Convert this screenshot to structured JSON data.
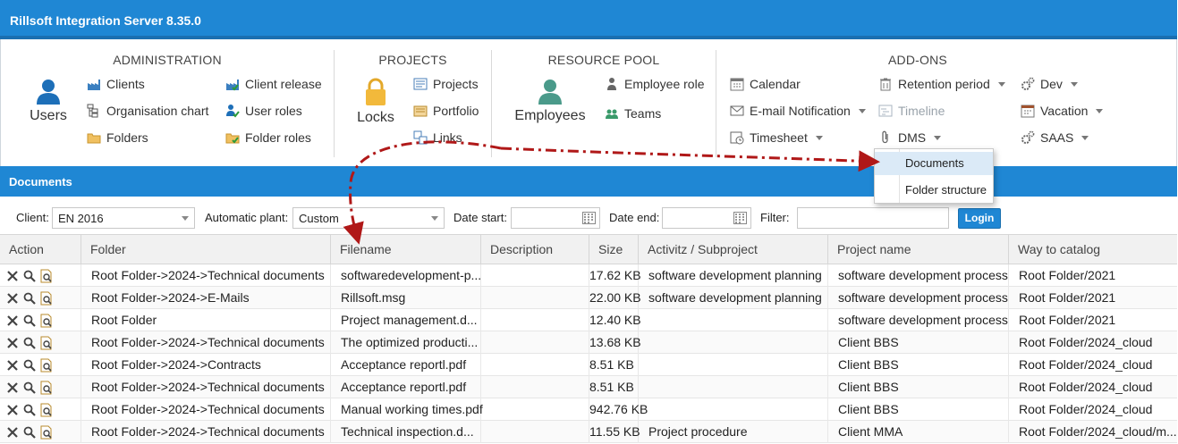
{
  "app": {
    "title": "Rillsoft Integration Server 8.35.0"
  },
  "ribbon": {
    "administration": {
      "title": "ADMINISTRATION",
      "big": "Users",
      "items": [
        "Clients",
        "Organisation chart",
        "Folders",
        "Client release",
        "User roles",
        "Folder roles"
      ]
    },
    "projects": {
      "title": "PROJECTS",
      "big": "Locks",
      "items": [
        "Projects",
        "Portfolio",
        "Links"
      ]
    },
    "resource_pool": {
      "title": "RESOURCE POOL",
      "big": "Employees",
      "items": [
        "Employee role",
        "Teams"
      ]
    },
    "addons": {
      "title": "ADD-ONS",
      "items": [
        "Calendar",
        "E-mail Notification",
        "Timesheet",
        "Retention period",
        "Timeline",
        "DMS",
        "Dev",
        "Vacation",
        "SAAS"
      ]
    }
  },
  "documents": {
    "title": "Documents"
  },
  "filters": {
    "client_label": "Client:",
    "client_value": "EN 2016",
    "plant_label": "Automatic plant:",
    "plant_value": "Custom",
    "date_start_label": "Date start:",
    "date_end_label": "Date end:",
    "filter_label": "Filter:",
    "login_label": "Login"
  },
  "table": {
    "headers": [
      "Action",
      "Folder",
      "Filename",
      "Description",
      "Size",
      "Activitz / Subproject",
      "Project name",
      "Way to catalog"
    ],
    "rows": [
      [
        "Root Folder->2024->Technical documents",
        "softwaredevelopment-p...",
        "",
        "17.62 KB",
        "software development planning",
        "software development process",
        "Root Folder/2021"
      ],
      [
        "Root Folder->2024->E-Mails",
        "Rillsoft.msg",
        "",
        "22.00 KB",
        "software development planning",
        "software development process",
        "Root Folder/2021"
      ],
      [
        "Root Folder",
        "Project management.d...",
        "",
        "12.40 KB",
        "",
        "software development process",
        "Root Folder/2021"
      ],
      [
        "Root Folder->2024->Technical documents",
        "The optimized producti...",
        "",
        "13.68 KB",
        "",
        "Client BBS",
        "Root Folder/2024_cloud"
      ],
      [
        "Root Folder->2024->Contracts",
        "Acceptance reportl.pdf",
        "",
        "8.51 KB",
        "",
        "Client BBS",
        "Root Folder/2024_cloud"
      ],
      [
        "Root Folder->2024->Technical documents",
        "Acceptance reportl.pdf",
        "",
        "8.51 KB",
        "",
        "Client BBS",
        "Root Folder/2024_cloud"
      ],
      [
        "Root Folder->2024->Technical documents",
        "Manual working times.pdf",
        "",
        "942.76 KB",
        "",
        "Client BBS",
        "Root Folder/2024_cloud"
      ],
      [
        "Root Folder->2024->Technical documents",
        "Technical inspection.d...",
        "",
        "11.55 KB",
        "Project procedure",
        "Client MMA",
        "Root Folder/2024_cloud/m..."
      ]
    ]
  },
  "dms_menu": {
    "items": [
      "Documents",
      "Folder structure"
    ],
    "selected": "Documents"
  },
  "colors": {
    "accent": "#1f87d4",
    "arrow": "#b01818",
    "selected": "#dbeaf7"
  }
}
